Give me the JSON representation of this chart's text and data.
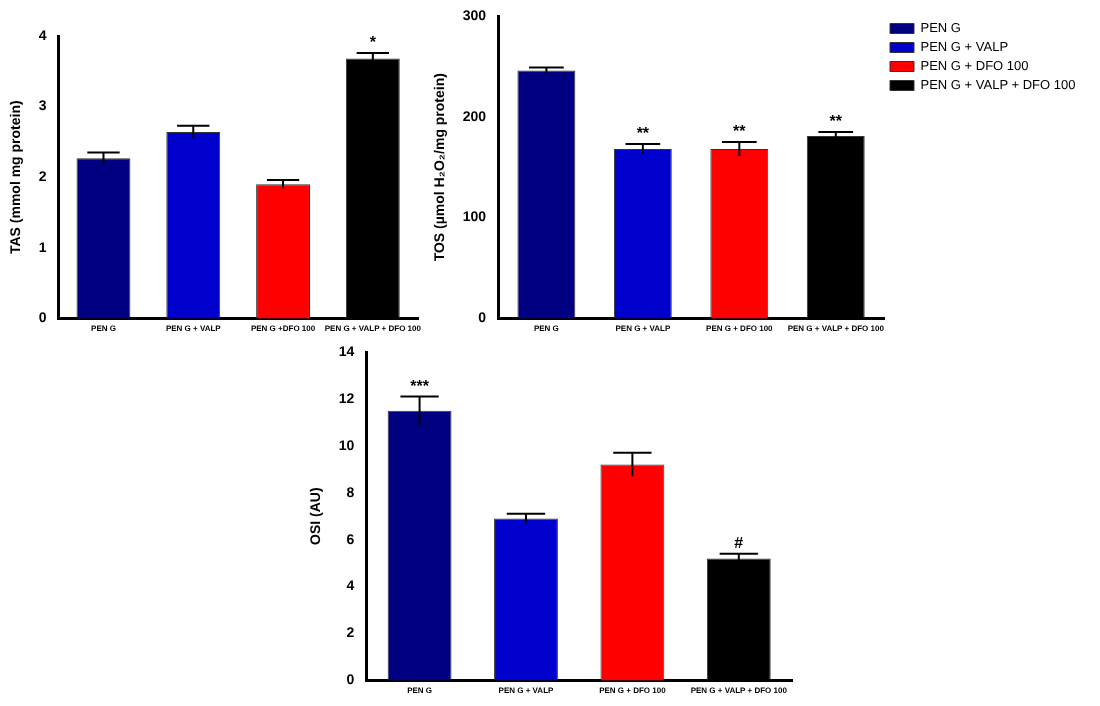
{
  "chart_data": [
    {
      "type": "bar",
      "stacked": true,
      "ylabel": "TAS (mmol mg protein)",
      "categories": [
        "PEN G",
        "PEN G + VALP",
        "PEN G +DFO 100",
        "PEN G + VALP + DFO 100"
      ],
      "ylim": [
        0,
        4
      ],
      "yticks": [
        0,
        1,
        2,
        3,
        4
      ],
      "grid": false,
      "legend": false,
      "series": [
        {
          "color": "#000080",
          "values": [
            2.27,
            null,
            null,
            null
          ],
          "errors": [
            0.08,
            null,
            null,
            null
          ]
        },
        {
          "color": "#0000cc",
          "values": [
            null,
            2.64,
            null,
            null
          ],
          "errors": [
            null,
            0.09,
            null,
            null
          ]
        },
        {
          "color": "#ff0000",
          "values": [
            null,
            null,
            1.9,
            null
          ],
          "errors": [
            null,
            null,
            0.06,
            null
          ]
        },
        {
          "color": "#000000",
          "values": [
            null,
            null,
            null,
            3.68
          ],
          "errors": [
            null,
            null,
            null,
            0.08
          ]
        }
      ],
      "annotations": [
        {
          "text": "*",
          "x": "PEN G + VALP + DFO 100",
          "y": 3.76
        }
      ]
    },
    {
      "type": "bar",
      "stacked": true,
      "ylabel": "TOS (µmol H₂O₂/mg protein)",
      "categories": [
        "PEN G",
        "PEN G + VALP",
        "PEN G + DFO 100",
        "PEN G + VALP + DFO 100"
      ],
      "ylim": [
        0,
        300
      ],
      "yticks": [
        0,
        100,
        200,
        300
      ],
      "grid": false,
      "legend": "top right",
      "series": [
        {
          "name": "PEN G",
          "color": "#000080",
          "values": [
            246,
            null,
            null,
            null
          ],
          "errors": [
            3,
            null,
            null,
            null
          ]
        },
        {
          "name": "PEN G + VALP",
          "color": "#0000cc",
          "values": [
            null,
            168,
            null,
            null
          ],
          "errors": [
            null,
            5,
            null,
            null
          ]
        },
        {
          "name": "PEN G + DFO 100",
          "color": "#ff0000",
          "values": [
            null,
            null,
            168,
            null
          ],
          "errors": [
            null,
            null,
            7,
            null
          ]
        },
        {
          "name": "PEN G + VALP + DFO 100",
          "color": "#000000",
          "values": [
            null,
            null,
            null,
            181
          ],
          "errors": [
            null,
            null,
            null,
            4
          ]
        }
      ],
      "annotations": [
        {
          "text": "**",
          "x": "PEN G + VALP",
          "y": 173
        },
        {
          "text": "**",
          "x": "PEN G + DFO 100",
          "y": 175
        },
        {
          "text": "**",
          "x": "PEN G + VALP + DFO 100",
          "y": 185
        }
      ]
    },
    {
      "type": "bar",
      "stacked": true,
      "ylabel": "OSI (AU)",
      "categories": [
        "PEN G",
        "PEN G + VALP",
        "PEN G + DFO 100",
        "PEN G + VALP + DFO 100"
      ],
      "ylim": [
        0,
        14
      ],
      "yticks": [
        0,
        2,
        4,
        6,
        8,
        10,
        12,
        14
      ],
      "grid": false,
      "legend": false,
      "series": [
        {
          "color": "#000080",
          "values": [
            11.5,
            null,
            null,
            null
          ],
          "errors": [
            0.6,
            null,
            null,
            null
          ]
        },
        {
          "color": "#0000cc",
          "values": [
            null,
            6.9,
            null,
            null
          ],
          "errors": [
            null,
            0.2,
            null,
            null
          ]
        },
        {
          "color": "#ff0000",
          "values": [
            null,
            null,
            9.2,
            null
          ],
          "errors": [
            null,
            null,
            0.5,
            null
          ]
        },
        {
          "color": "#000000",
          "values": [
            null,
            null,
            null,
            5.2
          ],
          "errors": [
            null,
            null,
            null,
            0.2
          ]
        }
      ],
      "annotations": [
        {
          "text": "***",
          "x": "PEN G",
          "y": 12.1
        },
        {
          "text": "#",
          "x": "PEN G + VALP + DFO 100",
          "y": 5.4
        }
      ]
    }
  ]
}
